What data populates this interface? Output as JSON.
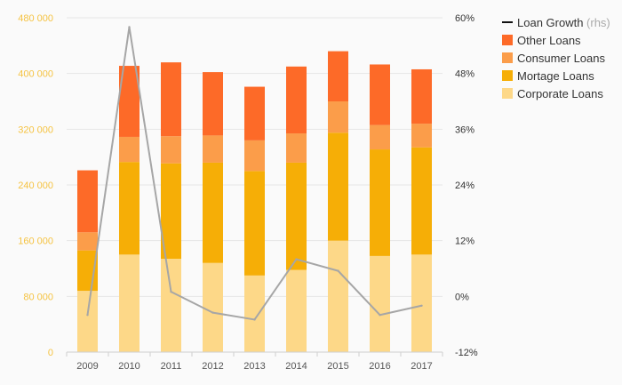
{
  "chart_data": {
    "type": "bar",
    "stacked": true,
    "categories": [
      "2009",
      "2010",
      "2011",
      "2012",
      "2013",
      "2014",
      "2015",
      "2016",
      "2017"
    ],
    "series": [
      {
        "name": "Corporate Loans",
        "color": "#fdd888",
        "values": [
          88000,
          140000,
          134000,
          128000,
          110000,
          118000,
          160000,
          138000,
          140000
        ]
      },
      {
        "name": "Mortage Loans",
        "color": "#f6ae06",
        "values": [
          58000,
          133000,
          137000,
          144000,
          150000,
          154000,
          155000,
          153000,
          154000
        ]
      },
      {
        "name": "Consumer Loans",
        "color": "#fb9d4a",
        "values": [
          26000,
          36000,
          39000,
          39000,
          44000,
          42000,
          45000,
          35000,
          34000
        ]
      },
      {
        "name": "Other Loans",
        "color": "#fd6a28",
        "values": [
          89000,
          102000,
          106000,
          91000,
          77000,
          96000,
          72000,
          87000,
          78000
        ]
      }
    ],
    "line_series": {
      "name": "Loan Growth",
      "axis": "right",
      "color": "#a6a6a6",
      "values": [
        -4,
        58,
        1,
        -3.5,
        -5,
        8,
        5.5,
        -4,
        -2
      ]
    },
    "legend": {
      "line_label": "Loan Growth",
      "line_suffix": "(rhs)",
      "position": "right"
    },
    "y_left": {
      "ylim": [
        0,
        480000
      ],
      "ticks": [
        0,
        80000,
        160000,
        240000,
        320000,
        400000,
        480000
      ],
      "tick_labels": [
        "0",
        "80 000",
        "160 000",
        "240 000",
        "320 000",
        "400 000",
        "480 000"
      ]
    },
    "y_right": {
      "ylim": [
        -12,
        60
      ],
      "ticks": [
        -12,
        0,
        12,
        24,
        36,
        48,
        60
      ],
      "tick_labels": [
        "-12%",
        "0%",
        "12%",
        "24%",
        "36%",
        "48%",
        "60%"
      ]
    },
    "grid": true
  }
}
